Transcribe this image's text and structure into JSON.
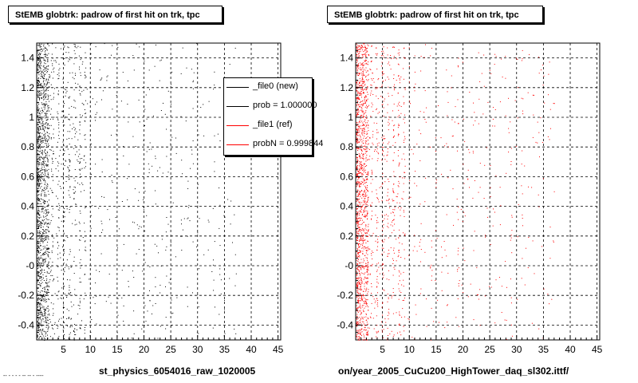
{
  "footer_text": "-- - - - - -- -- - ----",
  "chart_data": [
    {
      "type": "scatter",
      "title": "StEMB globtrk: padrow of first hit on trk, tpc",
      "xlabel": "st_physics_6054016_raw_1020005",
      "ylabel": "",
      "xlim": [
        0,
        45.5
      ],
      "ylim": [
        -0.5,
        1.5
      ],
      "xticks": [
        5,
        10,
        15,
        20,
        25,
        30,
        35,
        40,
        45
      ],
      "yticks": [
        -0.4,
        -0.2,
        0,
        0.2,
        0.4,
        0.6,
        0.8,
        1,
        1.2,
        1.4
      ],
      "ytick_labels": [
        "-0.4",
        "-0.2",
        "-0",
        "0.2",
        "0.4",
        "0.6",
        "0.8",
        "1",
        "1.2",
        "1.4"
      ],
      "grid": true,
      "marker_color": "#000000",
      "density_note": "dense band at x<=2, sparse points to x~37, vertical bands at integer padrows",
      "point_count": 2200,
      "legend": {
        "placement": "top-right",
        "entries": [
          {
            "label": "_file0 (new)",
            "color": "#000000"
          },
          {
            "label": "prob = 1.000000",
            "color": "#000000"
          },
          {
            "label": "_file1 (ref)",
            "color": "#ff0000"
          },
          {
            "label": "probN = 0.999844",
            "color": "#ff0000"
          }
        ]
      }
    },
    {
      "type": "scatter",
      "title": "StEMB globtrk: padrow of first hit on trk, tpc",
      "xlabel": "on/year_2005_CuCu200_HighTower_daq_sl302.ittf/",
      "ylabel": "",
      "xlim": [
        0,
        45.5
      ],
      "ylim": [
        -0.5,
        1.5
      ],
      "xticks": [
        5,
        10,
        15,
        20,
        25,
        30,
        35,
        40,
        45
      ],
      "yticks": [
        -0.4,
        -0.2,
        0,
        0.2,
        0.4,
        0.6,
        0.8,
        1,
        1.2,
        1.4
      ],
      "ytick_labels": [
        "-0.4",
        "-0.2",
        "-0",
        "0.2",
        "0.4",
        "0.6",
        "0.8",
        "1",
        "1.2",
        "1.4"
      ],
      "grid": true,
      "marker_color": "#ff0000",
      "point_count": 2200
    }
  ]
}
